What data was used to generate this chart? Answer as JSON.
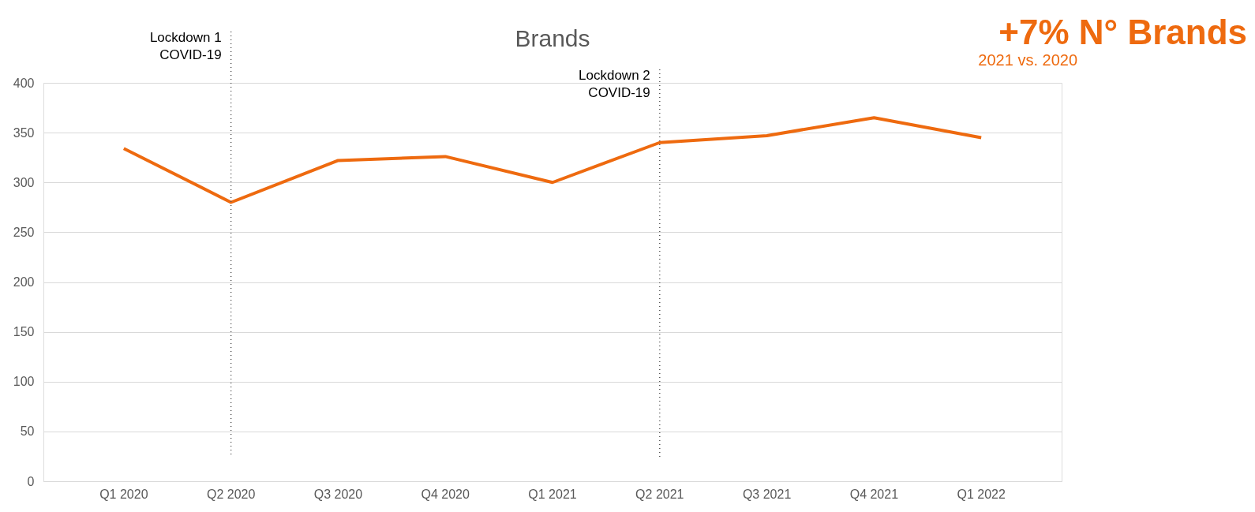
{
  "chart_data": {
    "type": "line",
    "title": "Brands",
    "categories": [
      "Q1 2020",
      "Q2 2020",
      "Q3 2020",
      "Q4 2020",
      "Q1 2021",
      "Q2 2021",
      "Q3 2021",
      "Q4 2021",
      "Q1 2022"
    ],
    "series": [
      {
        "color": "#ee6a0f",
        "values": [
          334,
          280,
          322,
          326,
          300,
          340,
          347,
          365,
          345
        ]
      }
    ],
    "ylim": [
      0,
      400
    ],
    "yticks": [
      0,
      50,
      100,
      150,
      200,
      250,
      300,
      350,
      400
    ],
    "grid": "y",
    "marker": "none",
    "line_style": "solid",
    "ref_lines": [
      {
        "axis": "x",
        "value": "Q2 2020",
        "label": "Lockdown 1\nCOVID-19",
        "line_style": "dotted",
        "color": "#555555"
      },
      {
        "axis": "x",
        "value": "Q2 2021",
        "label": "Lockdown 2\nCOVID-19",
        "line_style": "dotted",
        "color": "#555555"
      }
    ],
    "annotations": [
      "+7% N° Brands",
      "2021 vs. 2020"
    ]
  }
}
